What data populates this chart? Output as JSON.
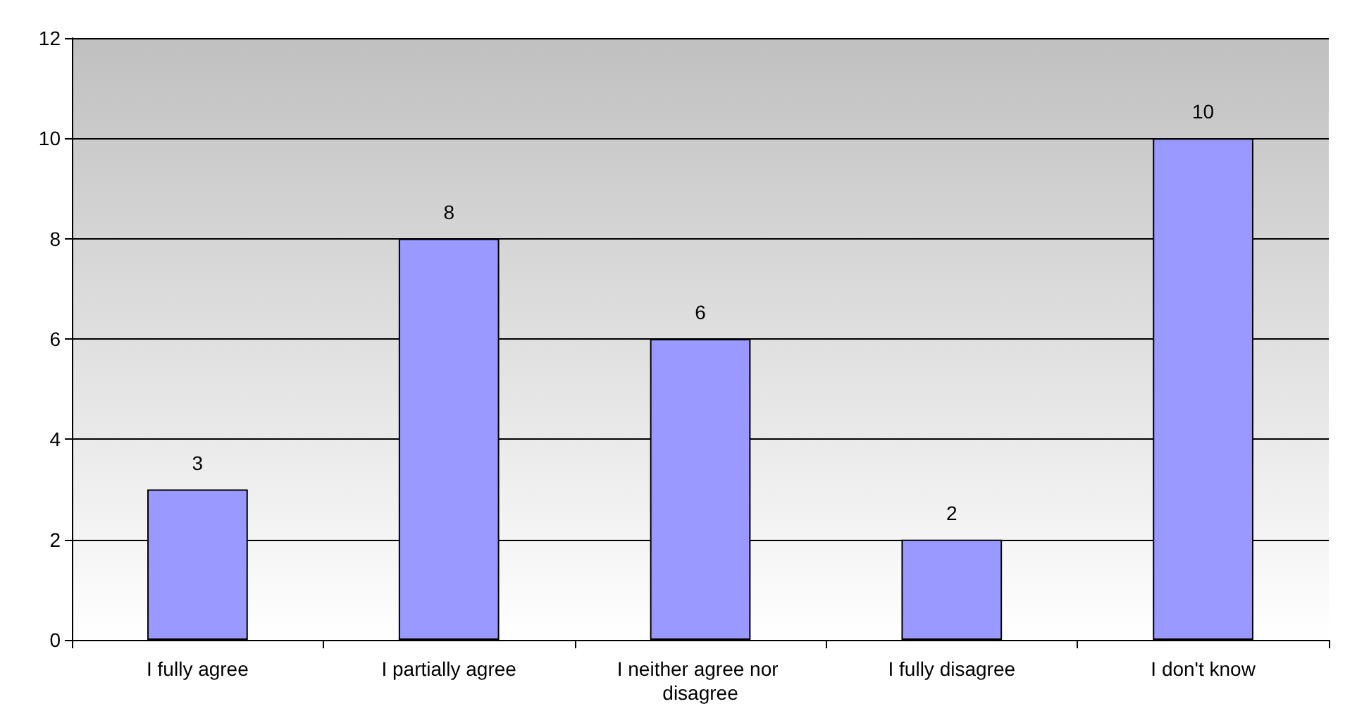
{
  "chart_data": {
    "type": "bar",
    "categories": [
      "I fully agree",
      "I partially agree",
      "I neither agree nor disagree",
      "I fully disagree",
      "I don't know"
    ],
    "values": [
      3,
      8,
      6,
      2,
      10
    ],
    "color": "#9999ff",
    "ylim": [
      0,
      12
    ],
    "yticks": [
      0,
      2,
      4,
      6,
      8,
      10,
      12
    ],
    "grid": "y",
    "data_labels": true
  }
}
